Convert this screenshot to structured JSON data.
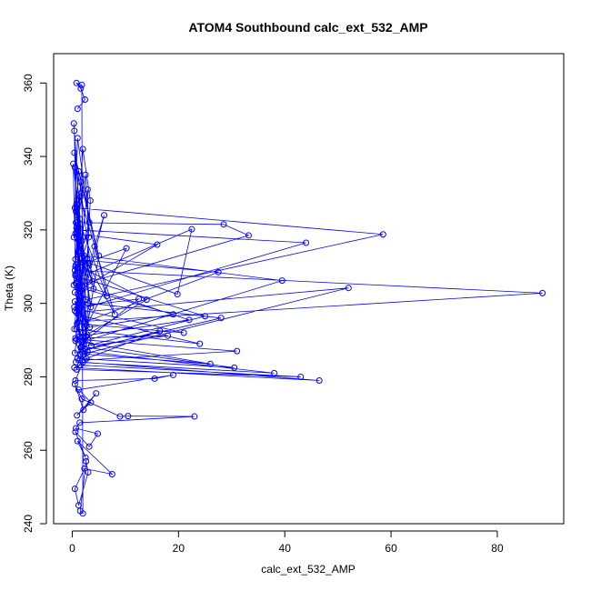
{
  "chart_data": {
    "type": "line",
    "title": "ATOM4 Southbound calc_ext_532_AMP",
    "xlabel": "calc_ext_532_AMP",
    "ylabel": "Theta (K)",
    "xlim": [
      -3.5,
      92.5
    ],
    "ylim": [
      240,
      368
    ],
    "x_ticks": [
      0,
      20,
      40,
      60,
      80
    ],
    "y_ticks": [
      240,
      260,
      280,
      300,
      320,
      340,
      360
    ],
    "grid": false,
    "legend": "none",
    "marker": "open-circle",
    "series": [
      {
        "color": "#0000ff",
        "x": [
          1.2,
          0.8,
          2.5,
          3.1,
          0.3,
          2.0,
          3.4,
          2.8,
          1.5,
          0.5,
          1.0,
          3.2,
          0.6,
          0.2,
          1.8,
          2.9,
          3.0,
          2.6,
          1.1,
          0.4,
          0.7,
          2.3,
          1.6,
          0.9,
          4.0,
          2.2,
          0.5,
          1.3,
          3.5,
          0.8,
          2.0,
          0.3,
          1.4,
          2.7,
          0.6,
          3.8,
          1.7,
          0.4,
          5.0,
          2.1,
          0.9,
          6.5,
          1.2,
          0.3,
          8.0,
          1.5,
          0.6,
          10.2,
          2.0,
          0.7,
          28.5,
          33.2,
          1.4,
          0.8,
          58.5,
          2.6,
          1.1,
          44.0,
          0.5,
          3.2,
          19.8,
          22.5,
          1.3,
          0.4,
          4.2,
          6.0,
          1.8,
          0.6,
          27.5,
          2.5,
          1.0,
          16.0,
          0.5,
          3.0,
          39.5,
          2.2,
          0.8,
          52.0,
          1.5,
          0.5,
          88.5,
          1.2,
          0.7,
          14.0,
          2.8,
          0.6,
          25.0,
          1.6,
          0.9,
          19.0,
          3.3,
          0.4,
          12.5,
          2.1,
          0.7,
          22.0,
          1.4,
          0.5,
          28.0,
          2.4,
          0.9,
          21.0,
          1.1,
          0.6,
          18.0,
          3.6,
          0.8,
          24.0,
          1.3,
          0.5,
          16.5,
          2.7,
          0.9,
          31.0,
          1.9,
          0.6,
          26.0,
          2.3,
          1.0,
          30.5,
          1.7,
          0.7,
          38.0,
          2.9,
          0.8,
          43.0,
          1.5,
          0.4,
          46.5,
          2.0,
          0.6,
          15.5,
          19.0,
          1.2,
          3.5,
          0.9,
          4.5,
          2.1,
          0.5,
          1.8,
          9.0,
          10.5,
          23.0,
          1.4,
          0.7,
          4.8,
          3.2,
          0.6,
          2.5,
          1.0,
          7.5,
          2.3,
          0.5,
          1.2,
          3.0,
          2.6,
          1.5,
          2.0,
          1.8,
          0.8,
          1.6,
          2.4,
          1.0
        ],
        "y": [
          300.0,
          320.5,
          335.0,
          318.0,
          305.0,
          342.0,
          328.0,
          312.0,
          296.0,
          326.0,
          345.0,
          322.0,
          308.0,
          338.0,
          317.0,
          331.0,
          300.0,
          291.0,
          314.0,
          347.0,
          325.0,
          309.0,
          333.0,
          321.0,
          304.0,
          289.0,
          337.0,
          316.0,
          299.0,
          327.0,
          311.0,
          349.0,
          323.0,
          294.0,
          319.0,
          306.0,
          330.0,
          341.0,
          313.0,
          287.0,
          324.0,
          302.0,
          336.0,
          318.0,
          297.0,
          329.0,
          310.0,
          315.0,
          292.0,
          322.0,
          321.5,
          318.5,
          305.0,
          326.0,
          318.8,
          301.0,
          320.0,
          316.5,
          298.0,
          311.0,
          302.5,
          320.2,
          307.0,
          293.0,
          315.5,
          324.0,
          299.5,
          312.0,
          308.5,
          295.0,
          319.0,
          316.0,
          303.0,
          290.0,
          306.2,
          313.0,
          297.5,
          304.2,
          286.0,
          309.0,
          302.8,
          295.0,
          310.5,
          301.0,
          291.5,
          307.5,
          296.5,
          288.0,
          304.5,
          297.0,
          293.5,
          299.0,
          301.2,
          289.5,
          305.5,
          295.5,
          291.0,
          300.5,
          296.0,
          287.5,
          294.5,
          292.0,
          298.5,
          290.5,
          291.2,
          288.5,
          293.0,
          289.0,
          296.8,
          286.5,
          292.5,
          285.0,
          290.2,
          287.0,
          284.5,
          289.8,
          283.5,
          286.2,
          285.0,
          282.5,
          288.2,
          284.0,
          281.0,
          286.8,
          282.0,
          280.0,
          283.2,
          282.5,
          279.0,
          284.0,
          279.0,
          279.5,
          280.5,
          276.5,
          273.0,
          269.5,
          275.5,
          271.0,
          278.0,
          274.0,
          269.2,
          269.3,
          269.2,
          267.5,
          266.0,
          264.5,
          261.0,
          265.0,
          258.0,
          262.5,
          253.5,
          255.0,
          249.5,
          245.0,
          254.0,
          257.0,
          243.5,
          242.8,
          359.5,
          360.0,
          358.5,
          355.5,
          353.0
        ]
      }
    ]
  }
}
